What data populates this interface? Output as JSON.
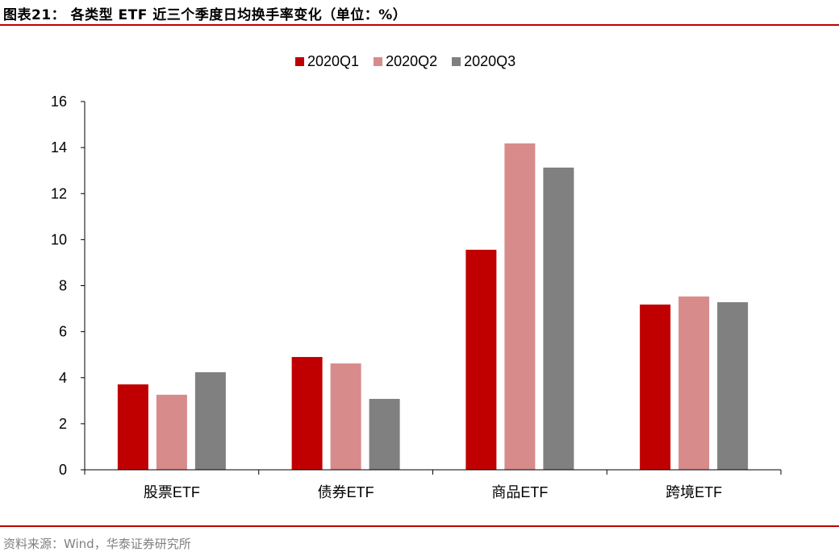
{
  "header": {
    "title": "图表21：  各类型 ETF 近三个季度日均换手率变化（单位：%）"
  },
  "footer": {
    "source": "资料来源：Wind，华泰证券研究所"
  },
  "colors": {
    "accent_rule": "#c00000",
    "series": [
      "#c00000",
      "#d88b8b",
      "#808080"
    ]
  },
  "legend": {
    "items": [
      {
        "label": "2020Q1",
        "color": "#c00000"
      },
      {
        "label": "2020Q2",
        "color": "#d88b8b"
      },
      {
        "label": "2020Q3",
        "color": "#808080"
      }
    ]
  },
  "chart_data": {
    "type": "bar",
    "title": "各类型 ETF 近三个季度日均换手率变化（单位：%）",
    "xlabel": "",
    "ylabel": "",
    "ylim": [
      0,
      16
    ],
    "yticks": [
      0,
      2,
      4,
      6,
      8,
      10,
      12,
      14,
      16
    ],
    "grid": false,
    "legend_position": "top",
    "categories": [
      "股票ETF",
      "债券ETF",
      "商品ETF",
      "跨境ETF"
    ],
    "series": [
      {
        "name": "2020Q1",
        "color": "#c00000",
        "values": [
          3.71,
          4.9,
          9.56,
          7.18
        ]
      },
      {
        "name": "2020Q2",
        "color": "#d88b8b",
        "values": [
          3.26,
          4.62,
          14.18,
          7.53
        ]
      },
      {
        "name": "2020Q3",
        "color": "#808080",
        "values": [
          4.24,
          3.08,
          13.13,
          7.28
        ]
      }
    ]
  }
}
